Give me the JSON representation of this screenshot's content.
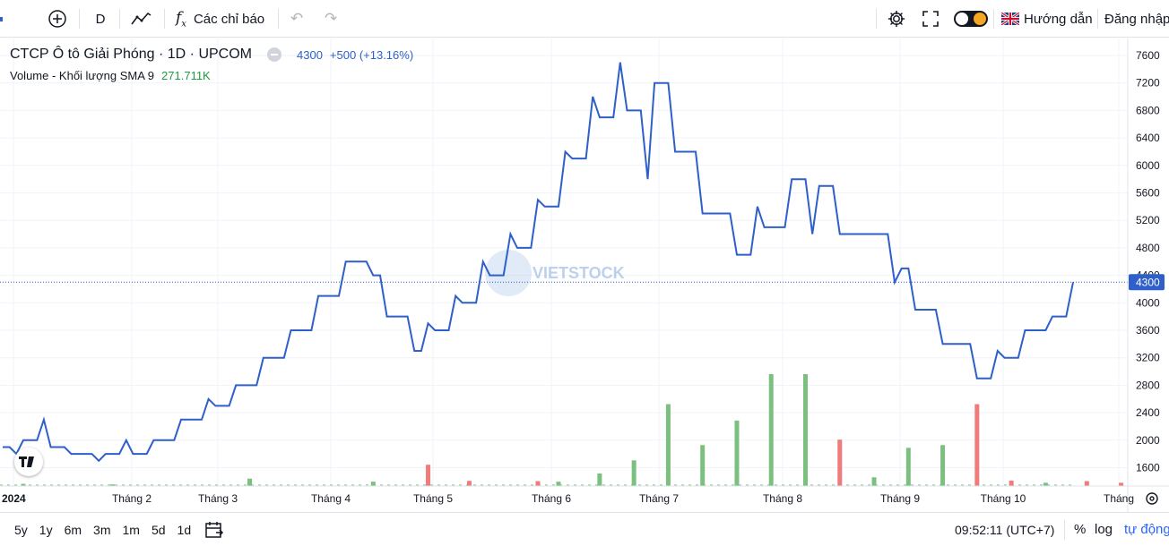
{
  "toolbar": {
    "interval": "D",
    "indicators_label": "Các chỉ báo",
    "guide_label": "Hướng dẫn",
    "login_label": "Đăng nhập"
  },
  "legend": {
    "symbol": "CTCP Ô tô Giải Phóng · 1D · UPCOM",
    "price": "4300",
    "change": "+500 (+13.16%)",
    "volume_label": "Volume - Khối lượng SMA 9",
    "volume_value": "271.711K"
  },
  "watermark": "VIETSTOCK",
  "bottom": {
    "ranges": [
      "5y",
      "1y",
      "6m",
      "3m",
      "1m",
      "5d",
      "1d"
    ],
    "time": "09:52:11 (UTC+7)",
    "percent": "%",
    "log": "log",
    "auto": "tự động"
  },
  "colors": {
    "line": "#2f5fc9",
    "vol_up": "#7cc07f",
    "vol_down": "#ef7b7b",
    "price_tag": "#2f5fc9",
    "green_text": "#1a9e3f"
  },
  "chart_data": {
    "type": "line",
    "ylim": [
      1400,
      7800
    ],
    "y_ticks": [
      "7600",
      "7200",
      "6800",
      "6400",
      "6000",
      "5600",
      "5200",
      "4800",
      "4400",
      "4000",
      "3600",
      "3200",
      "2800",
      "2400",
      "2000",
      "1600"
    ],
    "x_labels": [
      "2024",
      "Tháng 2",
      "Tháng 3",
      "Tháng 4",
      "Tháng 5",
      "Tháng 6",
      "Tháng 7",
      "Tháng 8",
      "Tháng 9",
      "Tháng 10",
      "Tháng"
    ],
    "last_price_label": "4300",
    "series": [
      {
        "values": [
          1900,
          1900,
          1800,
          2000,
          2000,
          2000,
          2300,
          1900,
          1900,
          1900,
          1800,
          1800,
          1800,
          1800,
          1700,
          1800,
          1800,
          1800,
          2000,
          1800,
          1800,
          1800,
          2000,
          2000,
          2000,
          2000,
          2300,
          2300,
          2300,
          2300,
          2600,
          2500,
          2500,
          2500,
          2800,
          2800,
          2800,
          2800,
          3200,
          3200,
          3200,
          3200,
          3600,
          3600,
          3600,
          3600,
          4100,
          4100,
          4100,
          4100,
          4600,
          4600,
          4600,
          4600,
          4400,
          4400,
          3800,
          3800,
          3800,
          3800,
          3300,
          3300,
          3700,
          3600,
          3600,
          3600,
          4100,
          4000,
          4000,
          4000,
          4600,
          4400,
          4400,
          4400,
          5000,
          4800,
          4800,
          4800,
          5500,
          5400,
          5400,
          5400,
          6200,
          6100,
          6100,
          6100,
          7000,
          6700,
          6700,
          6700,
          7500,
          6800,
          6800,
          6800,
          5800,
          7200,
          7200,
          7200,
          6200,
          6200,
          6200,
          6200,
          5300,
          5300,
          5300,
          5300,
          5300,
          4700,
          4700,
          4700,
          5400,
          5100,
          5100,
          5100,
          5100,
          5800,
          5800,
          5800,
          5000,
          5700,
          5700,
          5700,
          5000,
          5000,
          5000,
          5000,
          5000,
          5000,
          5000,
          5000,
          4300,
          4500,
          4500,
          3900,
          3900,
          3900,
          3900,
          3400,
          3400,
          3400,
          3400,
          3400,
          2900,
          2900,
          2900,
          3300,
          3200,
          3200,
          3200,
          3600,
          3600,
          3600,
          3600,
          3800,
          3800,
          3800,
          4300
        ]
      }
    ],
    "volume_bars": [
      {
        "i": 3,
        "v": 0.8,
        "up": true
      },
      {
        "i": 16,
        "v": 0.6,
        "up": true
      },
      {
        "i": 36,
        "v": 2.7,
        "up": true
      },
      {
        "i": 54,
        "v": 1.6,
        "up": true
      },
      {
        "i": 62,
        "v": 7.8,
        "up": false
      },
      {
        "i": 68,
        "v": 1.9,
        "up": false
      },
      {
        "i": 78,
        "v": 1.8,
        "up": false
      },
      {
        "i": 81,
        "v": 1.6,
        "up": true
      },
      {
        "i": 87,
        "v": 4.6,
        "up": true
      },
      {
        "i": 92,
        "v": 9.4,
        "up": true
      },
      {
        "i": 97,
        "v": 30,
        "up": true
      },
      {
        "i": 102,
        "v": 15,
        "up": true
      },
      {
        "i": 107,
        "v": 24,
        "up": true
      },
      {
        "i": 112,
        "v": 41,
        "up": true
      },
      {
        "i": 117,
        "v": 41,
        "up": true
      },
      {
        "i": 122,
        "v": 17,
        "up": false
      },
      {
        "i": 127,
        "v": 3.2,
        "up": true
      },
      {
        "i": 132,
        "v": 14,
        "up": true
      },
      {
        "i": 137,
        "v": 15,
        "up": true
      },
      {
        "i": 142,
        "v": 30,
        "up": false
      },
      {
        "i": 147,
        "v": 2,
        "up": false
      },
      {
        "i": 152,
        "v": 1.2,
        "up": true
      },
      {
        "i": 158,
        "v": 1.8,
        "up": false
      },
      {
        "i": 163,
        "v": 1.2,
        "up": false
      },
      {
        "i": 168,
        "v": 1.4,
        "up": true
      },
      {
        "i": 173,
        "v": 1.4,
        "up": true
      },
      {
        "i": 178,
        "v": 2.5,
        "up": false
      },
      {
        "i": 183,
        "v": 32,
        "up": true
      }
    ]
  }
}
